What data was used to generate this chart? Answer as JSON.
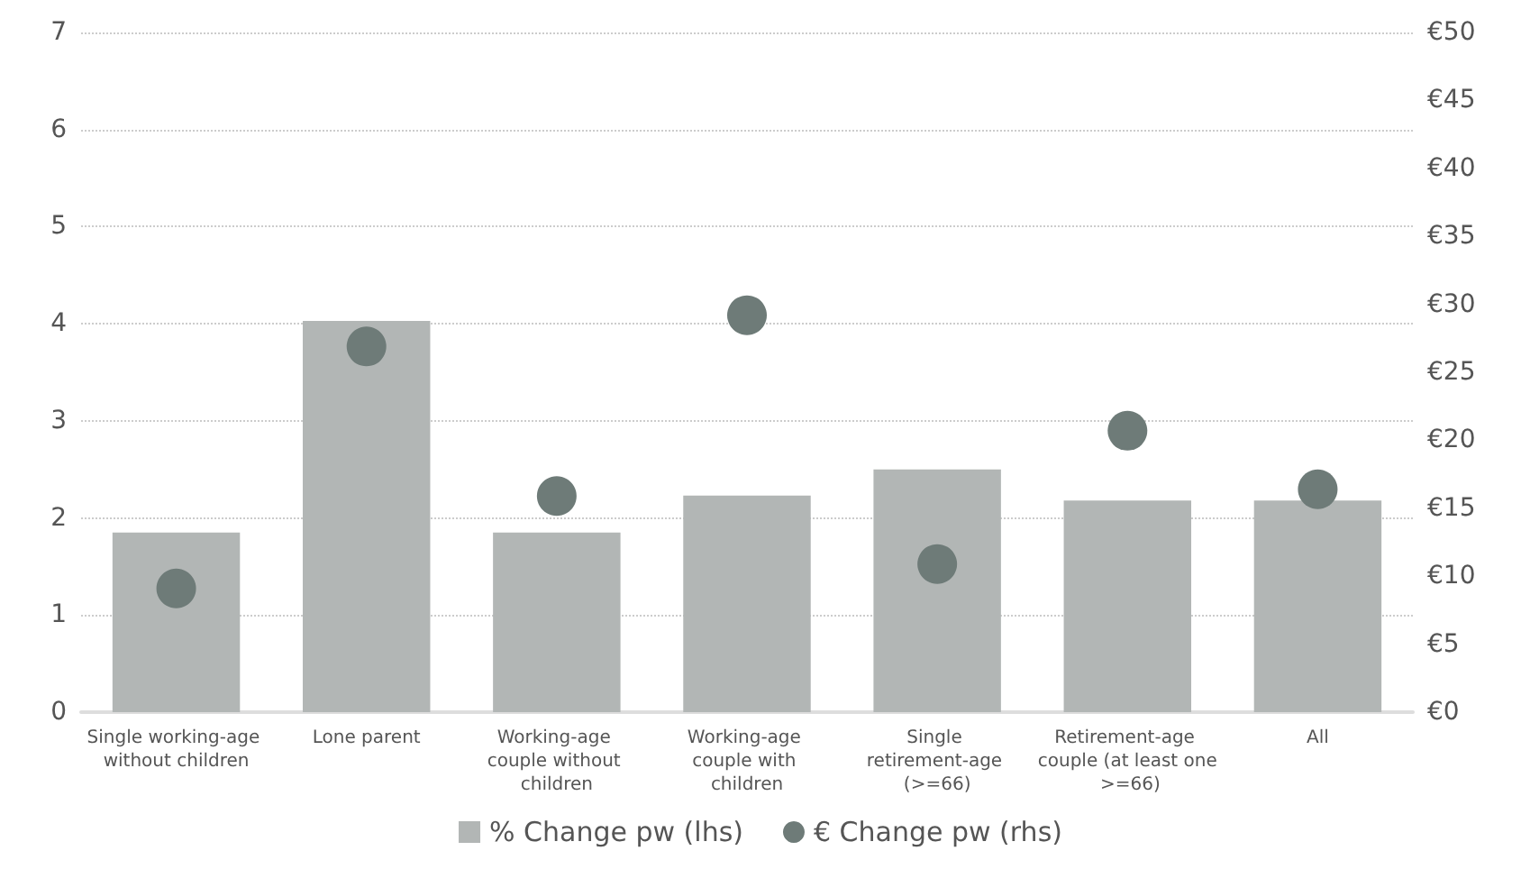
{
  "chart_data": {
    "type": "bar",
    "categories": [
      "Single working-age without children",
      "Lone parent",
      "Working-age couple without children",
      "Working-age couple with children",
      "Single retirement-age (>=66)",
      "Retirement-age couple (at least one >=66)",
      "All"
    ],
    "series": [
      {
        "name": "% Change pw (lhs)",
        "color": "#b2b6b5",
        "values": [
          1.85,
          4.03,
          1.85,
          2.23,
          2.5,
          2.18,
          2.18
        ]
      },
      {
        "name": "€ Change pw (rhs)",
        "type": "scatter",
        "axis": "y2",
        "color": "#6e7b78",
        "marker": "circle",
        "x": [
          "Single working-age without children",
          "Lone parent",
          "Working-age couple without children",
          "Working-age couple with children",
          "Single retirement-age (>=66)",
          "Retirement-age couple (at least one >=66)",
          "All"
        ],
        "values": [
          9.1,
          26.9,
          15.9,
          29.2,
          10.9,
          20.7,
          16.4
        ]
      }
    ],
    "ylim": [
      0,
      7
    ],
    "yticks": [
      0,
      1,
      2,
      3,
      4,
      5,
      6,
      7
    ],
    "y2lim": [
      0,
      50
    ],
    "y2ticks": [
      {
        "value": 0,
        "label": "€0"
      },
      {
        "value": 5,
        "label": "€5"
      },
      {
        "value": 10,
        "label": "€10"
      },
      {
        "value": 15,
        "label": "€15"
      },
      {
        "value": 20,
        "label": "€20"
      },
      {
        "value": 25,
        "label": "€25"
      },
      {
        "value": 30,
        "label": "€30"
      },
      {
        "value": 35,
        "label": "€35"
      },
      {
        "value": 40,
        "label": "€40"
      },
      {
        "value": 45,
        "label": "€45"
      },
      {
        "value": 50,
        "label": "€50"
      }
    ],
    "grid": "y",
    "legend": "bottom"
  }
}
